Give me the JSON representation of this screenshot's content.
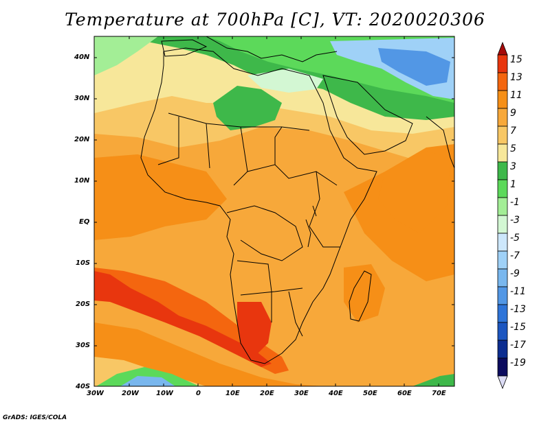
{
  "title": "Temperature at 700hPa [C], VT: 2020020306",
  "credit": "GrADS: IGES/COLA",
  "map": {
    "lat_labels": [
      "40N",
      "30N",
      "20N",
      "10N",
      "EQ",
      "10S",
      "20S",
      "30S",
      "40S"
    ],
    "lon_labels": [
      "30W",
      "20W",
      "10W",
      "0",
      "10E",
      "20E",
      "30E",
      "40E",
      "50E",
      "60E",
      "70E"
    ]
  },
  "colorbar": {
    "labels": [
      "15",
      "13",
      "11",
      "9",
      "7",
      "5",
      "3",
      "1",
      "-1",
      "-3",
      "-5",
      "-7",
      "-9",
      "-11",
      "-13",
      "-15",
      "-17",
      "-19"
    ],
    "colors": [
      "#a50a0a",
      "#e8360e",
      "#f4660f",
      "#f68f17",
      "#f7a83a",
      "#f8c765",
      "#f7e79a",
      "#3eb84a",
      "#5cd95a",
      "#a3ee96",
      "#d3f7d3",
      "#cde7fb",
      "#9fd1f7",
      "#79b7ee",
      "#5297e5",
      "#2e74d8",
      "#1c56c0",
      "#0c2d90",
      "#0b0b5e",
      "#dcdcf5"
    ]
  },
  "legend_colors": {
    "very_warm": "#e8360e",
    "warm": "#f4660f",
    "mild_orange": "#f68f17",
    "light_orange": "#f7a83a",
    "yellow": "#f8c765",
    "pale_yellow": "#f7e79a",
    "green": "#3eb84a",
    "light_green": "#5cd95a",
    "cold_blue": "#5297e5"
  }
}
